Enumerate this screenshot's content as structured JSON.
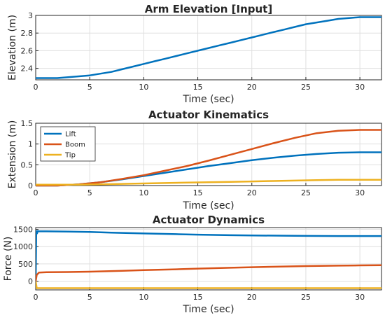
{
  "chart_data": [
    {
      "type": "line",
      "title": "Arm Elevation [Input]",
      "xlabel": "Time (sec)",
      "ylabel": "Elevation (m)",
      "xlim": [
        0,
        32
      ],
      "ylim": [
        2.27,
        3.0
      ],
      "xticks": [
        0,
        5,
        10,
        15,
        20,
        25,
        30
      ],
      "yticks": [
        2.4,
        2.6,
        2.8,
        3
      ],
      "ytick_labels": [
        "2.4",
        "2.6",
        "2.8",
        "3"
      ],
      "grid": true,
      "series": [
        {
          "color": "#0072bd",
          "x": [
            0,
            1,
            2,
            3,
            4,
            5,
            6,
            7,
            8,
            9,
            10,
            11,
            12,
            13,
            14,
            15,
            16,
            17,
            18,
            19,
            20,
            21,
            22,
            23,
            24,
            25,
            26,
            27,
            28,
            29,
            30,
            31,
            32
          ],
          "y": [
            2.29,
            2.29,
            2.29,
            2.3,
            2.31,
            2.32,
            2.34,
            2.36,
            2.39,
            2.42,
            2.45,
            2.48,
            2.51,
            2.54,
            2.57,
            2.6,
            2.63,
            2.66,
            2.69,
            2.72,
            2.75,
            2.78,
            2.81,
            2.84,
            2.87,
            2.9,
            2.92,
            2.94,
            2.96,
            2.97,
            2.98,
            2.98,
            2.98
          ]
        }
      ]
    },
    {
      "type": "line",
      "title": "Actuator Kinematics",
      "xlabel": "Time (sec)",
      "ylabel": "Extension (m)",
      "xlim": [
        0,
        32
      ],
      "ylim": [
        0,
        1.5
      ],
      "xticks": [
        0,
        5,
        10,
        15,
        20,
        25,
        30
      ],
      "yticks": [
        0,
        0.5,
        1,
        1.5
      ],
      "ytick_labels": [
        "0",
        "0.5",
        "1",
        "1.5"
      ],
      "grid": true,
      "legend": "top-left",
      "series": [
        {
          "name": "Lift",
          "color": "#0072bd",
          "x": [
            0,
            2,
            4,
            6,
            8,
            10,
            12,
            14,
            16,
            18,
            20,
            22,
            24,
            26,
            28,
            30,
            32
          ],
          "y": [
            0.0,
            0.0,
            0.03,
            0.08,
            0.15,
            0.23,
            0.31,
            0.39,
            0.47,
            0.54,
            0.61,
            0.67,
            0.72,
            0.76,
            0.79,
            0.8,
            0.8
          ]
        },
        {
          "name": "Boom",
          "color": "#d95319",
          "x": [
            0,
            2,
            4,
            6,
            8,
            10,
            12,
            14,
            16,
            18,
            20,
            22,
            24,
            26,
            28,
            30,
            32
          ],
          "y": [
            0.0,
            0.0,
            0.03,
            0.08,
            0.16,
            0.25,
            0.36,
            0.47,
            0.6,
            0.74,
            0.88,
            1.02,
            1.15,
            1.26,
            1.32,
            1.34,
            1.34
          ]
        },
        {
          "name": "Tip",
          "color": "#edb120",
          "x": [
            0,
            2,
            4,
            6,
            8,
            10,
            12,
            14,
            16,
            18,
            20,
            22,
            24,
            26,
            28,
            30,
            32
          ],
          "y": [
            0.02,
            0.02,
            0.02,
            0.03,
            0.04,
            0.05,
            0.06,
            0.07,
            0.08,
            0.09,
            0.1,
            0.11,
            0.12,
            0.13,
            0.14,
            0.14,
            0.14
          ]
        }
      ]
    },
    {
      "type": "line",
      "title": "Actuator Dynamics",
      "xlabel": "Time (sec)",
      "ylabel": "Force (N)",
      "xlim": [
        0,
        32
      ],
      "ylim": [
        -250,
        1550
      ],
      "xticks": [
        0,
        5,
        10,
        15,
        20,
        25,
        30
      ],
      "yticks": [
        0,
        500,
        1000,
        1500
      ],
      "ytick_labels": [
        "0",
        "500",
        "1000",
        "1500"
      ],
      "grid": true,
      "series": [
        {
          "color": "#0072bd",
          "x": [
            0,
            0.05,
            0.12,
            0.2,
            0.3,
            1,
            3,
            5,
            7,
            10,
            13,
            15,
            18,
            20,
            23,
            25,
            28,
            30,
            32
          ],
          "y": [
            0,
            1450,
            1380,
            1450,
            1440,
            1440,
            1435,
            1425,
            1405,
            1380,
            1360,
            1345,
            1330,
            1322,
            1315,
            1310,
            1306,
            1305,
            1305
          ]
        },
        {
          "color": "#d95319",
          "x": [
            0,
            0.1,
            0.3,
            1,
            3,
            5,
            8,
            10,
            13,
            15,
            18,
            20,
            23,
            25,
            28,
            30,
            32
          ],
          "y": [
            0,
            180,
            250,
            260,
            265,
            275,
            300,
            320,
            345,
            365,
            390,
            405,
            425,
            437,
            450,
            458,
            462
          ]
        },
        {
          "color": "#edb120",
          "x": [
            0,
            0.1,
            0.3,
            5,
            10,
            15,
            20,
            25,
            30,
            32
          ],
          "y": [
            0,
            -200,
            -200,
            -200,
            -200,
            -200,
            -200,
            -200,
            -200,
            -200
          ]
        }
      ]
    }
  ]
}
